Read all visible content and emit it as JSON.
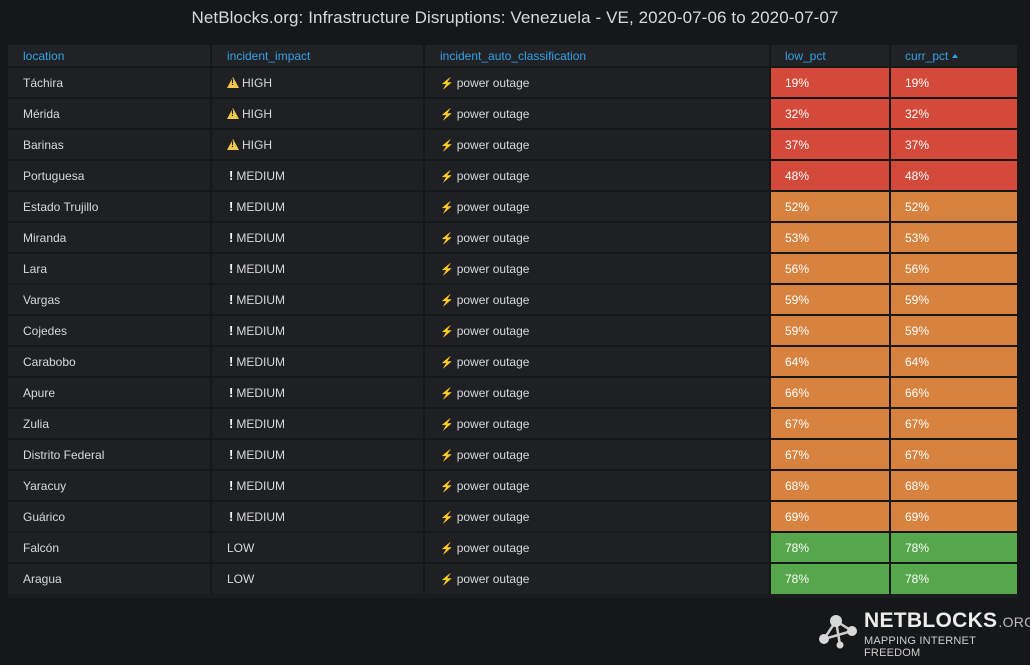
{
  "title": "NetBlocks.org: Infrastructure Disruptions: Venezuela - VE, 2020-07-06 to 2020-07-07",
  "columns": {
    "location": "location",
    "incident_impact": "incident_impact",
    "incident_auto_classification": "incident_auto_classification",
    "low_pct": "low_pct",
    "curr_pct": "curr_pct"
  },
  "sort": {
    "column": "curr_pct",
    "direction": "ascending"
  },
  "colors": {
    "high": "#d44a3a",
    "medium": "#d7833f",
    "low": "#56a64b",
    "header_text": "#33a2e5"
  },
  "rows": [
    {
      "location": "Táchira",
      "impact": "HIGH",
      "impact_level": "high",
      "classification": "power outage",
      "low_pct": "19%",
      "curr_pct": "19%"
    },
    {
      "location": "Mérida",
      "impact": "HIGH",
      "impact_level": "high",
      "classification": "power outage",
      "low_pct": "32%",
      "curr_pct": "32%"
    },
    {
      "location": "Barinas",
      "impact": "HIGH",
      "impact_level": "high",
      "classification": "power outage",
      "low_pct": "37%",
      "curr_pct": "37%"
    },
    {
      "location": "Portuguesa",
      "impact": "MEDIUM",
      "impact_level": "medium",
      "classification": "power outage",
      "low_pct": "48%",
      "curr_pct": "48%"
    },
    {
      "location": "Estado Trujillo",
      "impact": "MEDIUM",
      "impact_level": "medium",
      "classification": "power outage",
      "low_pct": "52%",
      "curr_pct": "52%"
    },
    {
      "location": "Miranda",
      "impact": "MEDIUM",
      "impact_level": "medium",
      "classification": "power outage",
      "low_pct": "53%",
      "curr_pct": "53%"
    },
    {
      "location": "Lara",
      "impact": "MEDIUM",
      "impact_level": "medium",
      "classification": "power outage",
      "low_pct": "56%",
      "curr_pct": "56%"
    },
    {
      "location": "Vargas",
      "impact": "MEDIUM",
      "impact_level": "medium",
      "classification": "power outage",
      "low_pct": "59%",
      "curr_pct": "59%"
    },
    {
      "location": "Cojedes",
      "impact": "MEDIUM",
      "impact_level": "medium",
      "classification": "power outage",
      "low_pct": "59%",
      "curr_pct": "59%"
    },
    {
      "location": "Carabobo",
      "impact": "MEDIUM",
      "impact_level": "medium",
      "classification": "power outage",
      "low_pct": "64%",
      "curr_pct": "64%"
    },
    {
      "location": "Apure",
      "impact": "MEDIUM",
      "impact_level": "medium",
      "classification": "power outage",
      "low_pct": "66%",
      "curr_pct": "66%"
    },
    {
      "location": "Zulia",
      "impact": "MEDIUM",
      "impact_level": "medium",
      "classification": "power outage",
      "low_pct": "67%",
      "curr_pct": "67%"
    },
    {
      "location": "Distrito Federal",
      "impact": "MEDIUM",
      "impact_level": "medium",
      "classification": "power outage",
      "low_pct": "67%",
      "curr_pct": "67%"
    },
    {
      "location": "Yaracuy",
      "impact": "MEDIUM",
      "impact_level": "medium",
      "classification": "power outage",
      "low_pct": "68%",
      "curr_pct": "68%"
    },
    {
      "location": "Guárico",
      "impact": "MEDIUM",
      "impact_level": "medium",
      "classification": "power outage",
      "low_pct": "69%",
      "curr_pct": "69%"
    },
    {
      "location": "Falcón",
      "impact": "LOW",
      "impact_level": "low",
      "classification": "power outage",
      "low_pct": "78%",
      "curr_pct": "78%"
    },
    {
      "location": "Aragua",
      "impact": "LOW",
      "impact_level": "low",
      "classification": "power outage",
      "low_pct": "78%",
      "curr_pct": "78%"
    }
  ],
  "logo": {
    "wordmark": "NETBLOCKS",
    "suffix": ".ORG",
    "tagline": "MAPPING INTERNET FREEDOM"
  }
}
